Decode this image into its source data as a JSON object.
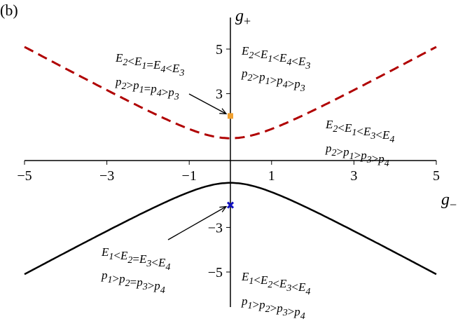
{
  "panel_label": "(b)",
  "chart_data": {
    "type": "line",
    "xlabel": "g−",
    "ylabel": "g+",
    "xlim": [
      -5,
      5
    ],
    "ylim": [
      -6.5,
      6.5
    ],
    "xticks": [
      -5,
      -3,
      -1,
      1,
      3,
      5
    ],
    "yticks": [
      5,
      3,
      -3,
      -5
    ],
    "grid": false,
    "series": [
      {
        "style": "dashed",
        "color": "#b00000",
        "formula": "g+ = sqrt(1 + g−^2)",
        "x": [
          -5,
          -4,
          -3,
          -2,
          -1,
          0,
          1,
          2,
          3,
          4,
          5
        ],
        "y": [
          5.1,
          4.12,
          3.16,
          2.24,
          1.41,
          1.0,
          1.41,
          2.24,
          3.16,
          4.12,
          5.1
        ]
      },
      {
        "style": "solid",
        "color": "#000000",
        "formula": "g+ = -sqrt(1 + g−^2)",
        "x": [
          -5,
          -4,
          -3,
          -2,
          -1,
          0,
          1,
          2,
          3,
          4,
          5
        ],
        "y": [
          -5.1,
          -4.12,
          -3.16,
          -2.24,
          -1.41,
          -1.0,
          -1.41,
          -2.24,
          -3.16,
          -4.12,
          -5.1
        ]
      }
    ],
    "points": [
      {
        "x": 0,
        "y": 2,
        "color": "#f0a030",
        "marker": "square"
      },
      {
        "x": 0,
        "y": -2,
        "color": "#1010c0",
        "marker": "x"
      }
    ],
    "annotations": [
      {
        "lines": [
          "E2<E1=E4<E3",
          "p2>p1=p4>p3"
        ],
        "arrow_to": [
          0,
          2
        ]
      },
      {
        "lines": [
          "E2<E1<E4<E3",
          "p2>p1>p4>p3"
        ]
      },
      {
        "lines": [
          "E2<E1<E3<E4",
          "p2>p1>p3>p4"
        ]
      },
      {
        "lines": [
          "E1<E2=E3<E4",
          "p1>p2=p3>p4"
        ],
        "arrow_to": [
          0,
          -2
        ]
      },
      {
        "lines": [
          "E1<E2<E3<E4",
          "p1>p2>p3>p4"
        ]
      }
    ]
  }
}
